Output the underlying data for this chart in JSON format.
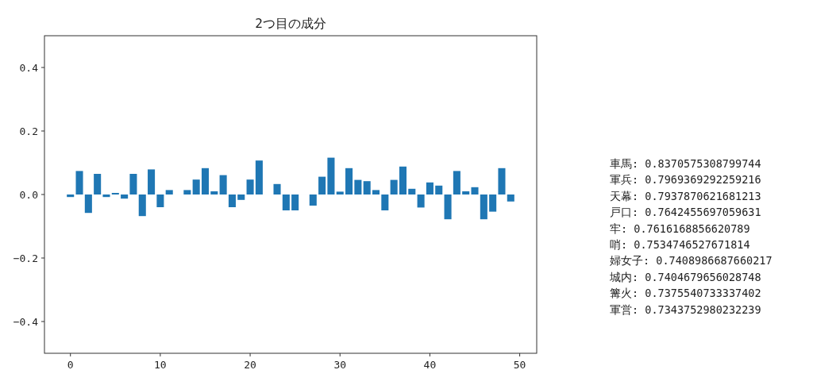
{
  "chart_data": {
    "type": "bar",
    "title": "2つ目の成分",
    "x": [
      0,
      1,
      2,
      3,
      4,
      5,
      6,
      7,
      8,
      9,
      10,
      11,
      12,
      13,
      14,
      15,
      16,
      17,
      18,
      19,
      20,
      21,
      22,
      23,
      24,
      25,
      26,
      27,
      28,
      29,
      30,
      31,
      32,
      33,
      34,
      35,
      36,
      37,
      38,
      39,
      40,
      41,
      42,
      43,
      44,
      45,
      46,
      47,
      48,
      49
    ],
    "values": [
      -0.008,
      0.074,
      -0.058,
      0.065,
      -0.008,
      0.005,
      -0.013,
      0.065,
      -0.068,
      0.079,
      -0.04,
      0.014,
      0,
      0.014,
      0.047,
      0.083,
      0.01,
      0.061,
      -0.04,
      -0.017,
      0.047,
      0.107,
      0,
      0.033,
      -0.05,
      -0.05,
      0,
      -0.035,
      0.056,
      0.116,
      0.009,
      0.083,
      0.046,
      0.042,
      0.014,
      -0.05,
      0.046,
      0.088,
      0.018,
      -0.041,
      0.038,
      0.028,
      -0.078,
      0.074,
      0.01,
      0.023,
      -0.078,
      -0.054,
      0.083,
      -0.022
    ],
    "color": "#1f77b4",
    "xlim": [
      -2.89,
      51.89
    ],
    "ylim": [
      -0.5,
      0.5
    ],
    "xticks": [
      0,
      10,
      20,
      30,
      40,
      50
    ],
    "yticks": [
      {
        "value": -0.4,
        "label": "−0.4"
      },
      {
        "value": -0.2,
        "label": "−0.2"
      },
      {
        "value": 0,
        "label": "0.0"
      },
      {
        "value": 0.2,
        "label": "0.2"
      },
      {
        "value": 0.4,
        "label": "0.4"
      }
    ],
    "grid": false,
    "annotations": [
      "車馬: 0.8370575308799744",
      "軍兵: 0.7969369292259216",
      "天幕: 0.7937870621681213",
      "戸口: 0.7642455697059631",
      "牢: 0.7616168856620789",
      "哨: 0.7534746527671814",
      "婦女子: 0.7408986687660217",
      "城内: 0.7404679656028748",
      "篝火: 0.7375540733337402",
      "軍営: 0.7343752980232239"
    ]
  }
}
